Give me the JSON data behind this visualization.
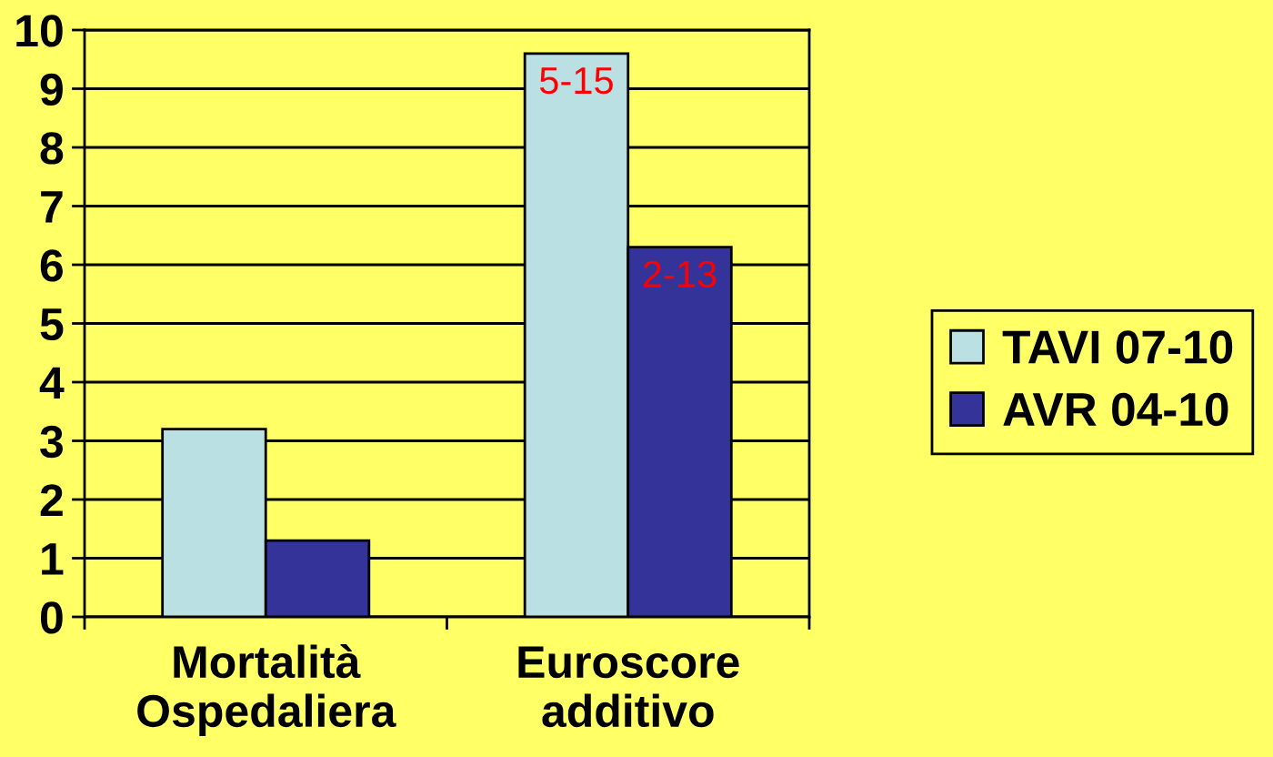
{
  "chart_data": {
    "type": "bar",
    "categories": [
      "Mortalità\nOspedaliera",
      "Euroscore\nadditivo"
    ],
    "series": [
      {
        "name": "TAVI 07-10",
        "color": "#bae0e3",
        "values": [
          3.2,
          9.6
        ],
        "value_labels": [
          null,
          "5-15"
        ]
      },
      {
        "name": "AVR 04-10",
        "color": "#333399",
        "values": [
          1.3,
          6.3
        ],
        "value_labels": [
          null,
          "2-13"
        ]
      }
    ],
    "ylim": [
      0,
      10
    ],
    "yticks": [
      0,
      1,
      2,
      3,
      4,
      5,
      6,
      7,
      8,
      9,
      10
    ],
    "grid": "y",
    "legend": "right"
  }
}
